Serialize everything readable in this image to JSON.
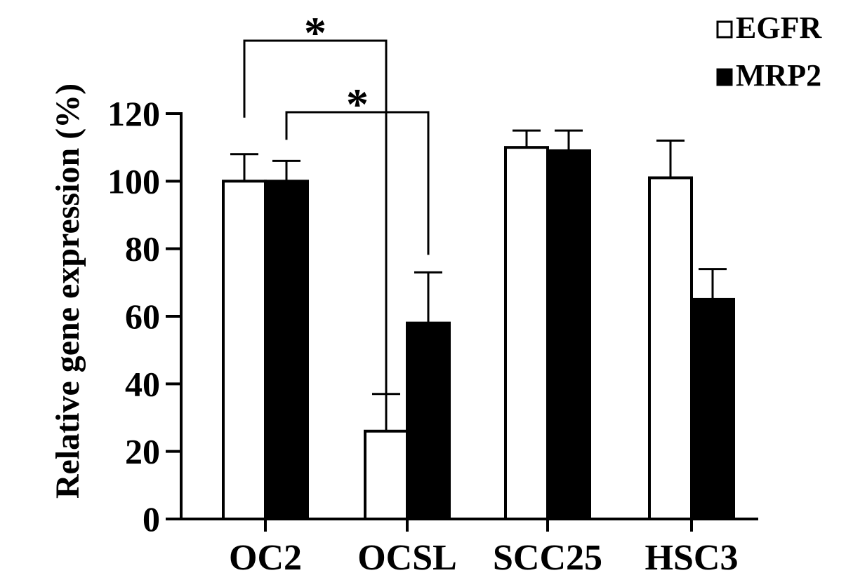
{
  "chart_data": {
    "type": "bar",
    "categories": [
      "OC2",
      "OCSL",
      "SCC25",
      "HSC3"
    ],
    "series": [
      {
        "name": "EGFR",
        "values": [
          100,
          26,
          110,
          101
        ],
        "errors": [
          8,
          11,
          5,
          11
        ],
        "fill": "#ffffff"
      },
      {
        "name": "MRP2",
        "values": [
          100,
          58,
          109,
          65
        ],
        "errors": [
          6,
          15,
          6,
          9
        ],
        "fill": "#000000"
      }
    ],
    "xlabel": "",
    "ylabel": "Relative gene expression (%)",
    "ylim": [
      0,
      120
    ],
    "yticks": [
      0,
      20,
      40,
      60,
      80,
      100,
      120
    ],
    "grid": false,
    "legend_position": "top-right",
    "significance": [
      {
        "from": "OC2 EGFR",
        "to": "OCSL EGFR",
        "label": "*"
      },
      {
        "from": "OC2 MRP2",
        "to": "OCSL MRP2",
        "label": "*"
      }
    ]
  }
}
